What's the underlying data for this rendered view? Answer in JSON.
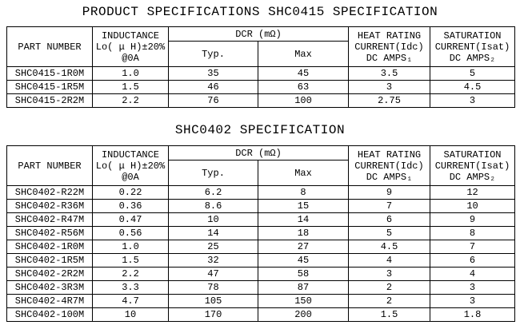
{
  "titles": {
    "main": "PRODUCT SPECIFICATIONS SHC0415 SPECIFICATION",
    "second": "SHC0402 SPECIFICATION"
  },
  "columns": {
    "part_number": "PART NUMBER",
    "inductance": "INDUCTANCE\nLo( μ H)±20%\n@0A",
    "dcr": "DCR (mΩ)",
    "typ": "Typ.",
    "max": "Max",
    "heat_rating": "HEAT RATING\nCURRENT(Idc)\nDC AMPS₁",
    "saturation": "SATURATION\nCURRENT(Isat)\nDC AMPS₂"
  },
  "tables": [
    {
      "rows": [
        [
          "SHC0415-1R0M",
          "1.0",
          "35",
          "45",
          "3.5",
          "5"
        ],
        [
          "SHC0415-1R5M",
          "1.5",
          "46",
          "63",
          "3",
          "4.5"
        ],
        [
          "SHC0415-2R2M",
          "2.2",
          "76",
          "100",
          "2.75",
          "3"
        ]
      ]
    },
    {
      "rows": [
        [
          "SHC0402-R22M",
          "0.22",
          "6.2",
          "8",
          "9",
          "12"
        ],
        [
          "SHC0402-R36M",
          "0.36",
          "8.6",
          "15",
          "7",
          "10"
        ],
        [
          "SHC0402-R47M",
          "0.47",
          "10",
          "14",
          "6",
          "9"
        ],
        [
          "SHC0402-R56M",
          "0.56",
          "14",
          "18",
          "5",
          "8"
        ],
        [
          "SHC0402-1R0M",
          "1.0",
          "25",
          "27",
          "4.5",
          "7"
        ],
        [
          "SHC0402-1R5M",
          "1.5",
          "32",
          "45",
          "4",
          "6"
        ],
        [
          "SHC0402-2R2M",
          "2.2",
          "47",
          "58",
          "3",
          "4"
        ],
        [
          "SHC0402-3R3M",
          "3.3",
          "78",
          "87",
          "2",
          "3"
        ],
        [
          "SHC0402-4R7M",
          "4.7",
          "105",
          "150",
          "2",
          "3"
        ],
        [
          "SHC0402-100M",
          "10",
          "170",
          "200",
          "1.5",
          "1.8"
        ]
      ]
    }
  ],
  "colors": {
    "text": "#000000",
    "border": "#000000",
    "background": "#ffffff"
  }
}
